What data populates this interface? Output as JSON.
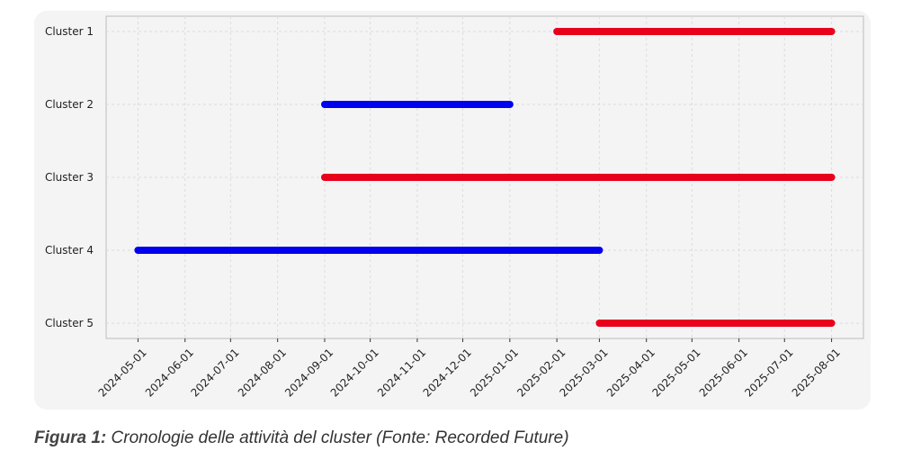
{
  "chart_data": {
    "type": "timeline",
    "categories": [
      "Cluster 1",
      "Cluster 2",
      "Cluster 3",
      "Cluster 4",
      "Cluster 5"
    ],
    "start": [
      "2025-02-01",
      "2024-09-01",
      "2024-09-01",
      "2024-05-01",
      "2025-03-01"
    ],
    "end": [
      "2025-08-01",
      "2025-01-01",
      "2025-08-01",
      "2025-03-01",
      "2025-08-01"
    ],
    "colors": [
      "#e8001c",
      "#0000ee",
      "#e8001c",
      "#0000ee",
      "#e8001c"
    ],
    "xlim": [
      "2024-04-10",
      "2025-08-22"
    ],
    "xticks": [
      "2024-05-01",
      "2024-06-01",
      "2024-07-01",
      "2024-08-01",
      "2024-09-01",
      "2024-10-01",
      "2024-11-01",
      "2024-12-01",
      "2025-01-01",
      "2025-02-01",
      "2025-03-01",
      "2025-04-01",
      "2025-05-01",
      "2025-06-01",
      "2025-07-01",
      "2025-08-01"
    ],
    "grid": true
  },
  "caption": {
    "label": "Figura 1:",
    "text": "Cronologie delle attività del cluster (Fonte: Recorded Future)"
  }
}
